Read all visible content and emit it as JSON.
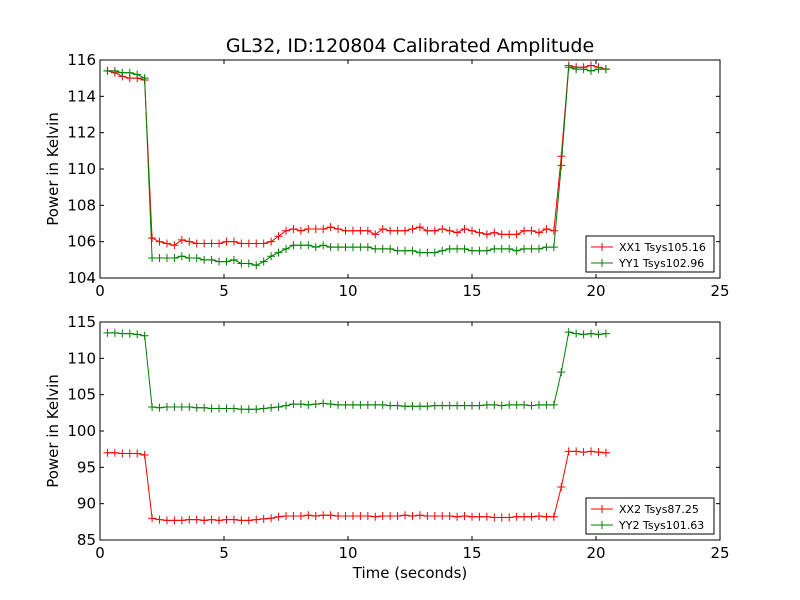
{
  "figure": {
    "title": "GL32, ID:120804 Calibrated Amplitude",
    "xlabel": "Time (seconds)"
  },
  "chart_data": [
    {
      "type": "line",
      "title": "GL32, ID:120804 Calibrated Amplitude",
      "xlabel": "",
      "ylabel": "Power in Kelvin",
      "xlim": [
        0,
        25
      ],
      "ylim": [
        104,
        116
      ],
      "xticks": [
        0,
        5,
        10,
        15,
        20,
        25
      ],
      "yticks": [
        104,
        106,
        108,
        110,
        112,
        114,
        116
      ],
      "grid": false,
      "legend_position": "lower-right",
      "x": [
        0.3,
        0.6,
        0.9,
        1.2,
        1.5,
        1.8,
        2.1,
        2.4,
        2.7,
        3.0,
        3.3,
        3.6,
        3.9,
        4.2,
        4.5,
        4.8,
        5.1,
        5.4,
        5.7,
        6.0,
        6.3,
        6.6,
        6.9,
        7.2,
        7.5,
        7.8,
        8.1,
        8.4,
        8.7,
        9.0,
        9.3,
        9.6,
        9.9,
        10.2,
        10.5,
        10.8,
        11.1,
        11.4,
        11.7,
        12.0,
        12.3,
        12.6,
        12.9,
        13.2,
        13.5,
        13.8,
        14.1,
        14.4,
        14.7,
        15.0,
        15.3,
        15.6,
        15.9,
        16.2,
        16.5,
        16.8,
        17.1,
        17.4,
        17.7,
        18.0,
        18.3,
        18.6,
        18.9,
        19.2,
        19.5,
        19.8,
        20.1,
        20.4
      ],
      "series": [
        {
          "name": "XX1 Tsys105.16",
          "color": "#ff0000",
          "values": [
            115.4,
            115.3,
            115.1,
            115.0,
            115.0,
            114.9,
            106.2,
            106.0,
            105.9,
            105.8,
            106.1,
            106.0,
            105.9,
            105.9,
            105.9,
            105.9,
            106.0,
            106.0,
            105.9,
            105.9,
            105.9,
            105.9,
            106.0,
            106.3,
            106.6,
            106.7,
            106.6,
            106.7,
            106.7,
            106.7,
            106.8,
            106.7,
            106.6,
            106.6,
            106.6,
            106.6,
            106.4,
            106.7,
            106.6,
            106.6,
            106.6,
            106.7,
            106.8,
            106.6,
            106.6,
            106.7,
            106.6,
            106.5,
            106.7,
            106.6,
            106.5,
            106.4,
            106.5,
            106.4,
            106.4,
            106.4,
            106.6,
            106.6,
            106.5,
            106.7,
            106.6,
            110.7,
            115.7,
            115.6,
            115.6,
            115.7,
            115.6,
            115.5
          ]
        },
        {
          "name": "YY1 Tsys102.96",
          "color": "#008000",
          "values": [
            115.4,
            115.4,
            115.3,
            115.3,
            115.2,
            115.0,
            105.1,
            105.1,
            105.1,
            105.1,
            105.2,
            105.1,
            105.1,
            105.0,
            105.0,
            104.9,
            104.9,
            105.0,
            104.8,
            104.8,
            104.7,
            104.9,
            105.2,
            105.4,
            105.6,
            105.8,
            105.8,
            105.8,
            105.7,
            105.8,
            105.7,
            105.7,
            105.7,
            105.7,
            105.7,
            105.7,
            105.6,
            105.6,
            105.6,
            105.5,
            105.5,
            105.5,
            105.4,
            105.4,
            105.4,
            105.5,
            105.6,
            105.6,
            105.6,
            105.5,
            105.5,
            105.5,
            105.6,
            105.6,
            105.6,
            105.5,
            105.6,
            105.6,
            105.6,
            105.7,
            105.7,
            110.2,
            115.6,
            115.5,
            115.5,
            115.4,
            115.5,
            115.5
          ]
        }
      ]
    },
    {
      "type": "line",
      "title": "",
      "xlabel": "Time (seconds)",
      "ylabel": "Power in Kelvin",
      "xlim": [
        0,
        25
      ],
      "ylim": [
        85,
        115
      ],
      "xticks": [
        0,
        5,
        10,
        15,
        20,
        25
      ],
      "yticks": [
        85,
        90,
        95,
        100,
        105,
        110,
        115
      ],
      "grid": false,
      "legend_position": "lower-right",
      "x": [
        0.3,
        0.6,
        0.9,
        1.2,
        1.5,
        1.8,
        2.1,
        2.4,
        2.7,
        3.0,
        3.3,
        3.6,
        3.9,
        4.2,
        4.5,
        4.8,
        5.1,
        5.4,
        5.7,
        6.0,
        6.3,
        6.6,
        6.9,
        7.2,
        7.5,
        7.8,
        8.1,
        8.4,
        8.7,
        9.0,
        9.3,
        9.6,
        9.9,
        10.2,
        10.5,
        10.8,
        11.1,
        11.4,
        11.7,
        12.0,
        12.3,
        12.6,
        12.9,
        13.2,
        13.5,
        13.8,
        14.1,
        14.4,
        14.7,
        15.0,
        15.3,
        15.6,
        15.9,
        16.2,
        16.5,
        16.8,
        17.1,
        17.4,
        17.7,
        18.0,
        18.3,
        18.6,
        18.9,
        19.2,
        19.5,
        19.8,
        20.1,
        20.4
      ],
      "series": [
        {
          "name": "XX2 Tsys87.25",
          "color": "#ff0000",
          "values": [
            97.0,
            97.0,
            96.9,
            96.9,
            96.9,
            96.7,
            88.0,
            87.8,
            87.7,
            87.7,
            87.7,
            87.8,
            87.8,
            87.7,
            87.8,
            87.7,
            87.8,
            87.8,
            87.7,
            87.7,
            87.8,
            87.9,
            88.0,
            88.2,
            88.3,
            88.3,
            88.3,
            88.4,
            88.3,
            88.4,
            88.4,
            88.3,
            88.3,
            88.3,
            88.3,
            88.3,
            88.2,
            88.3,
            88.3,
            88.3,
            88.4,
            88.3,
            88.4,
            88.3,
            88.3,
            88.3,
            88.3,
            88.2,
            88.3,
            88.2,
            88.2,
            88.2,
            88.1,
            88.1,
            88.1,
            88.2,
            88.2,
            88.2,
            88.3,
            88.2,
            88.2,
            92.3,
            97.2,
            97.2,
            97.1,
            97.2,
            97.1,
            97.0
          ]
        },
        {
          "name": "YY2 Tsys101.63",
          "color": "#008000",
          "values": [
            113.5,
            113.5,
            113.4,
            113.4,
            113.3,
            113.1,
            103.3,
            103.2,
            103.3,
            103.3,
            103.3,
            103.3,
            103.2,
            103.2,
            103.1,
            103.1,
            103.1,
            103.1,
            103.0,
            103.0,
            103.0,
            103.1,
            103.2,
            103.3,
            103.5,
            103.7,
            103.7,
            103.6,
            103.7,
            103.8,
            103.7,
            103.6,
            103.6,
            103.6,
            103.6,
            103.6,
            103.6,
            103.6,
            103.5,
            103.5,
            103.4,
            103.4,
            103.4,
            103.4,
            103.5,
            103.5,
            103.5,
            103.5,
            103.5,
            103.5,
            103.5,
            103.6,
            103.6,
            103.5,
            103.6,
            103.6,
            103.6,
            103.5,
            103.6,
            103.6,
            103.6,
            108.1,
            113.6,
            113.4,
            113.3,
            113.4,
            113.3,
            113.4
          ]
        }
      ]
    }
  ]
}
